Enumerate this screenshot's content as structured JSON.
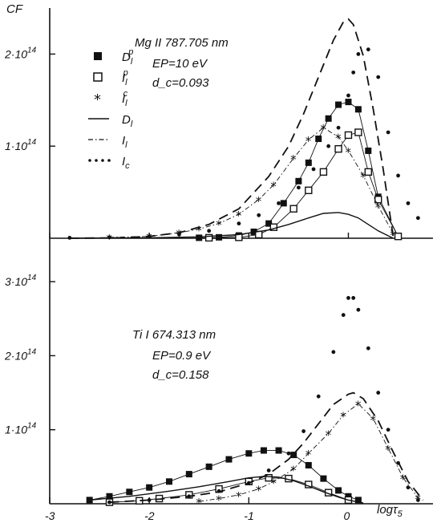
{
  "chart_data": {
    "type": "line",
    "y_axis_label": "CF",
    "x_axis_label": "logτ5",
    "x_ticks": [
      -3,
      -2,
      -1,
      0
    ],
    "xlim": [
      -3,
      0.85
    ],
    "grid": false,
    "legend": {
      "placement": "top-left of upper panel",
      "entries": [
        {
          "symbol": "filled-square",
          "label": "D_l^p"
        },
        {
          "symbol": "open-square",
          "label": "I_l^p"
        },
        {
          "symbol": "asterisk",
          "label": "I_l^c"
        },
        {
          "symbol": "solid-line",
          "label": "D_l"
        },
        {
          "symbol": "dash-dot-line",
          "label": "I_l"
        },
        {
          "symbol": "dotted-line",
          "label": "I_c"
        }
      ]
    },
    "panels": [
      {
        "panel": "upper",
        "annotation": [
          "Mg II 787.705 nm",
          "EP=10 eV",
          "d_c=0.093"
        ],
        "y_ticks": [
          {
            "value": 100000000000000.0,
            "label": "1·10^14"
          },
          {
            "value": 200000000000000.0,
            "label": "2·10^14"
          }
        ],
        "ylim": [
          0,
          250000000000000.0
        ],
        "series": [
          {
            "name": "D_l^p",
            "style": "filled-square",
            "x": [
              -1.5,
              -1.3,
              -1.1,
              -0.95,
              -0.8,
              -0.65,
              -0.5,
              -0.4,
              -0.3,
              -0.2,
              -0.1,
              0,
              0.1,
              0.2,
              0.3,
              0.5
            ],
            "y": [
              500000000000.0,
              1000000000000.0,
              3000000000000.0,
              7000000000000.0,
              16000000000000.0,
              38000000000000.0,
              62000000000000.0,
              82000000000000.0,
              108000000000000.0,
              130000000000000.0,
              145000000000000.0,
              148000000000000.0,
              140000000000000.0,
              95000000000000.0,
              45000000000000.0,
              2000000000000.0
            ]
          },
          {
            "name": "I_l^p",
            "style": "open-square",
            "x": [
              -1.4,
              -1.1,
              -0.9,
              -0.75,
              -0.55,
              -0.4,
              -0.25,
              -0.1,
              0,
              0.1,
              0.2,
              0.3,
              0.5
            ],
            "y": [
              500000000000.0,
              1000000000000.0,
              4000000000000.0,
              12000000000000.0,
              32000000000000.0,
              52000000000000.0,
              72000000000000.0,
              97000000000000.0,
              112000000000000.0,
              115000000000000.0,
              72000000000000.0,
              42000000000000.0,
              2000000000000.0
            ]
          },
          {
            "name": "I_l^c",
            "style": "asterisk",
            "x": [
              -2.4,
              -2.0,
              -1.7,
              -1.5,
              -1.3,
              -1.1,
              -0.9,
              -0.75,
              -0.55,
              -0.4,
              -0.25,
              -0.1,
              0.0,
              0.15,
              0.3,
              0.45
            ],
            "y": [
              1000000000000.0,
              2000000000000.0,
              6000000000000.0,
              10000000000000.0,
              16000000000000.0,
              26000000000000.0,
              42000000000000.0,
              58000000000000.0,
              87000000000000.0,
              107000000000000.0,
              120000000000000.0,
              110000000000000.0,
              95000000000000.0,
              68000000000000.0,
              35000000000000.0,
              5000000000000.0
            ]
          },
          {
            "name": "D_l",
            "style": "solid",
            "x": [
              -2.8,
              -2.0,
              -1.5,
              -1.1,
              -0.8,
              -0.6,
              -0.4,
              -0.25,
              -0.1,
              0.0,
              0.1,
              0.2,
              0.3,
              0.45
            ],
            "y": [
              0,
              500000000000.0,
              1500000000000.0,
              4000000000000.0,
              9000000000000.0,
              15000000000000.0,
              22000000000000.0,
              27000000000000.0,
              28000000000000.0,
              26000000000000.0,
              22000000000000.0,
              15000000000000.0,
              8000000000000.0,
              0
            ]
          },
          {
            "name": "I_l",
            "style": "dashed",
            "x": [
              -2.8,
              -2.3,
              -2.0,
              -1.7,
              -1.4,
              -1.1,
              -0.8,
              -0.6,
              -0.45,
              -0.3,
              -0.15,
              -0.05,
              0.0,
              0.05,
              0.15,
              0.25,
              0.35,
              0.45
            ],
            "y": [
              0,
              500000000000.0,
              2000000000000.0,
              6000000000000.0,
              15000000000000.0,
              32000000000000.0,
              67000000000000.0,
              100000000000000.0,
              135000000000000.0,
              175000000000000.0,
              215000000000000.0,
              235000000000000.0,
              238000000000000.0,
              232000000000000.0,
              198000000000000.0,
              140000000000000.0,
              75000000000000.0,
              2000000000000.0
            ]
          },
          {
            "name": "I_c",
            "style": "dotted",
            "x": [
              -2.8,
              -2.4,
              -2.0,
              -1.7,
              -1.4,
              -1.1,
              -0.9,
              -0.7,
              -0.5,
              -0.35,
              -0.2,
              -0.1,
              0,
              0.05,
              0.1,
              0.2,
              0.3,
              0.4,
              0.5,
              0.6,
              0.7
            ],
            "y": [
              500000000000.0,
              1000000000000.0,
              2000000000000.0,
              4000000000000.0,
              8000000000000.0,
              16000000000000.0,
              25000000000000.0,
              38000000000000.0,
              55000000000000.0,
              75000000000000.0,
              100000000000000.0,
              120000000000000.0,
              155000000000000.0,
              180000000000000.0,
              200000000000000.0,
              205000000000000.0,
              175000000000000.0,
              115000000000000.0,
              68000000000000.0,
              38000000000000.0,
              22000000000000.0
            ]
          }
        ]
      },
      {
        "panel": "lower",
        "annotation": [
          "Ti I 674.313 nm",
          "EP=0.9 eV",
          "d_c=0.158"
        ],
        "y_ticks": [
          {
            "value": 100000000000000.0,
            "label": "1·10^14"
          },
          {
            "value": 200000000000000.0,
            "label": "2·10^14"
          },
          {
            "value": 300000000000000.0,
            "label": "3·10^14"
          }
        ],
        "ylim": [
          0,
          350000000000000.0
        ],
        "series": [
          {
            "name": "D_l^p",
            "style": "filled-square",
            "x": [
              -2.6,
              -2.4,
              -2.2,
              -2.0,
              -1.8,
              -1.6,
              -1.4,
              -1.2,
              -1.0,
              -0.85,
              -0.7,
              -0.55,
              -0.4,
              -0.25,
              -0.1,
              0.0,
              0.1
            ],
            "y": [
              5000000000000.0,
              10000000000000.0,
              16000000000000.0,
              22000000000000.0,
              30000000000000.0,
              40000000000000.0,
              50000000000000.0,
              60000000000000.0,
              68000000000000.0,
              72000000000000.0,
              72000000000000.0,
              66000000000000.0,
              52000000000000.0,
              34000000000000.0,
              18000000000000.0,
              10000000000000.0,
              5000000000000.0
            ]
          },
          {
            "name": "I_l^p",
            "style": "open-square",
            "x": [
              -2.4,
              -2.1,
              -1.9,
              -1.6,
              -1.3,
              -1.0,
              -0.8,
              -0.6,
              -0.4,
              -0.2,
              0.0
            ],
            "y": [
              2000000000000.0,
              4000000000000.0,
              7000000000000.0,
              12000000000000.0,
              20000000000000.0,
              30000000000000.0,
              35000000000000.0,
              34000000000000.0,
              26000000000000.0,
              15000000000000.0,
              5000000000000.0
            ]
          },
          {
            "name": "I_l^c",
            "style": "asterisk",
            "x": [
              -1.5,
              -1.3,
              -1.1,
              -0.9,
              -0.75,
              -0.55,
              -0.4,
              -0.2,
              -0.05,
              0.1,
              0.25,
              0.4,
              0.55,
              0.7
            ],
            "y": [
              3000000000000.0,
              7000000000000.0,
              12000000000000.0,
              20000000000000.0,
              30000000000000.0,
              47000000000000.0,
              68000000000000.0,
              95000000000000.0,
              120000000000000.0,
              135000000000000.0,
              115000000000000.0,
              75000000000000.0,
              35000000000000.0,
              8000000000000.0
            ]
          },
          {
            "name": "D_l",
            "style": "solid",
            "x": [
              -2.6,
              -2.2,
              -1.8,
              -1.5,
              -1.2,
              -1.0,
              -0.85,
              -0.7,
              -0.55,
              -0.4,
              -0.25,
              -0.1,
              0.0,
              0.15
            ],
            "y": [
              5000000000000.0,
              10000000000000.0,
              17000000000000.0,
              23000000000000.0,
              30000000000000.0,
              35000000000000.0,
              37000000000000.0,
              36000000000000.0,
              31000000000000.0,
              24000000000000.0,
              16000000000000.0,
              9000000000000.0,
              5000000000000.0,
              1000000000000.0
            ]
          },
          {
            "name": "I_l",
            "style": "dashed",
            "x": [
              -2.4,
              -2.0,
              -1.6,
              -1.3,
              -1.0,
              -0.8,
              -0.6,
              -0.45,
              -0.3,
              -0.15,
              0.0,
              0.05,
              0.15,
              0.3,
              0.45,
              0.6,
              0.75
            ],
            "y": [
              2000000000000.0,
              5000000000000.0,
              10000000000000.0,
              16000000000000.0,
              28000000000000.0,
              40000000000000.0,
              60000000000000.0,
              82000000000000.0,
              108000000000000.0,
              134000000000000.0,
              148000000000000.0,
              150000000000000.0,
              142000000000000.0,
              112000000000000.0,
              70000000000000.0,
              30000000000000.0,
              5000000000000.0
            ]
          },
          {
            "name": "I_c",
            "style": "dotted",
            "x": [
              -2.4,
              -2.0,
              -1.6,
              -1.3,
              -1.0,
              -0.8,
              -0.6,
              -0.45,
              -0.3,
              -0.15,
              -0.05,
              0.0,
              0.05,
              0.1,
              0.2,
              0.3,
              0.4,
              0.5,
              0.6,
              0.7
            ],
            "y": [
              2000000000000.0,
              5000000000000.0,
              10000000000000.0,
              17000000000000.0,
              28000000000000.0,
              45000000000000.0,
              68000000000000.0,
              98000000000000.0,
              145000000000000.0,
              205000000000000.0,
              255000000000000.0,
              278000000000000.0,
              278000000000000.0,
              262000000000000.0,
              210000000000000.0,
              150000000000000.0,
              100000000000000.0,
              55000000000000.0,
              22000000000000.0,
              5000000000000.0
            ]
          }
        ]
      }
    ]
  }
}
